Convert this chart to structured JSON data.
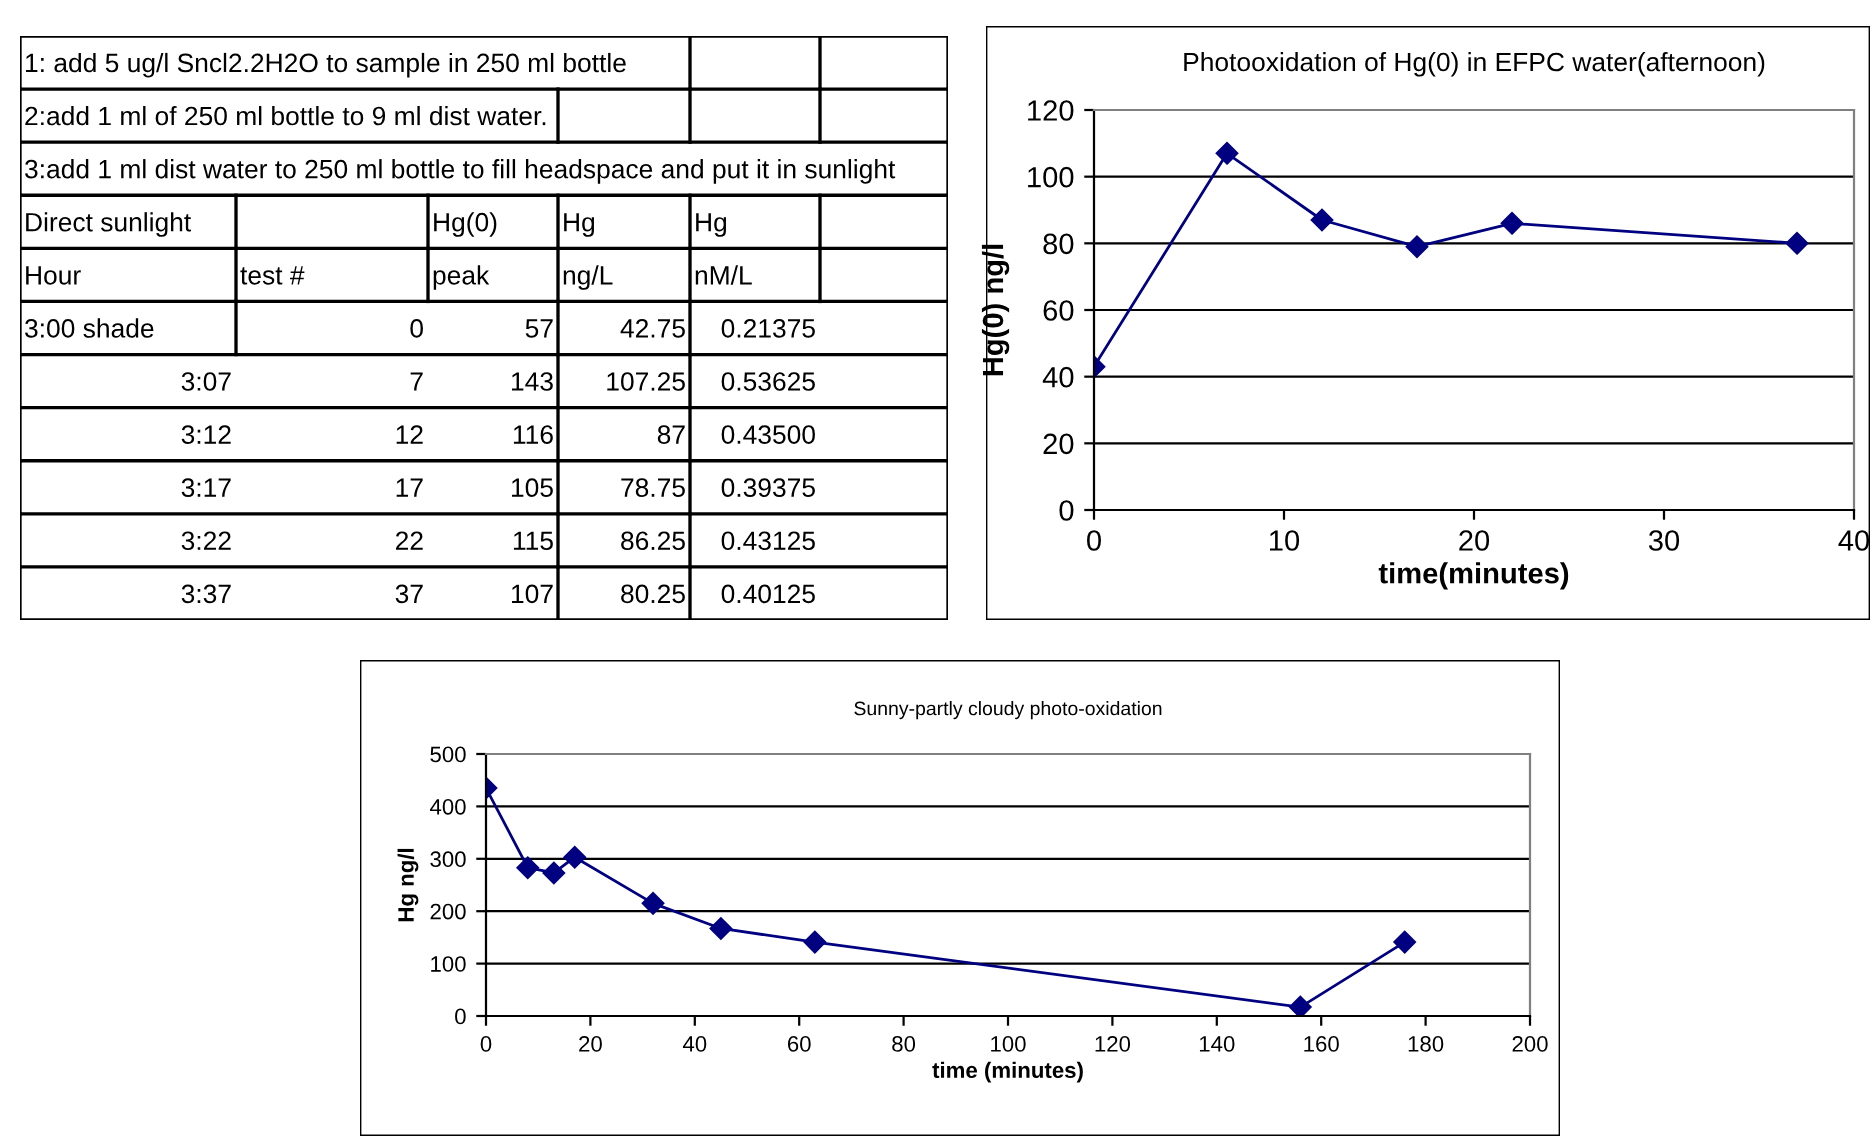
{
  "chart_data": [
    {
      "type": "other",
      "cells": [
        [
          "1: add 5 ug/l Sncl2.2H2O to sample in 250 ml bottle",
          null,
          null,
          null,
          null,
          null
        ],
        [
          "2:add 1 ml of 250 ml bottle to 9 ml dist water.",
          null,
          null,
          null,
          null,
          null
        ],
        [
          "3:add 1 ml dist water to 250 ml bottle to fill headspace and put it in sunlight",
          null,
          null,
          null,
          null,
          null
        ],
        [
          "Direct sunlight",
          null,
          "Hg(0)",
          "Hg",
          "Hg",
          null
        ],
        [
          "Hour",
          "test #",
          "peak",
          "ng/L",
          "nM/L",
          null
        ],
        [
          "3:00 shade",
          "0",
          "57",
          "42.75",
          "0.21375",
          null
        ],
        [
          "3:07",
          "7",
          "143",
          "107.25",
          "0.53625",
          null
        ],
        [
          "3:12",
          "12",
          "116",
          "87",
          "0.43500",
          null
        ],
        [
          "3:17",
          "17",
          "105",
          "78.75",
          "0.39375",
          null
        ],
        [
          "3:22",
          "22",
          "115",
          "86.25",
          "0.43125",
          null
        ],
        [
          "3:37",
          "37",
          "107",
          "80.25",
          "0.40125",
          null
        ]
      ]
    },
    {
      "type": "line",
      "title": "Photooxidation of Hg(0) in EFPC water(afternoon)",
      "xlabel": "time(minutes)",
      "ylabel": "Hg(0) ng/l",
      "x": [
        0,
        7,
        12,
        17,
        22,
        37
      ],
      "series": [
        {
          "color": "#000080",
          "values": [
            43,
            107,
            87,
            79,
            86,
            80
          ]
        }
      ],
      "xlim": [
        0,
        40
      ],
      "xticks": [
        0,
        10,
        20,
        30,
        40
      ],
      "ylim": [
        0,
        120
      ],
      "yticks": [
        0,
        20,
        40,
        60,
        80,
        100,
        120
      ],
      "grid": "y",
      "marker": "diamond",
      "line_style": "solid"
    },
    {
      "type": "line",
      "title": "Sunny-partly cloudy photo-oxidation",
      "xlabel": "time (minutes)",
      "ylabel": "Hg ng/l",
      "x": [
        0,
        8,
        13,
        17,
        32,
        45,
        63,
        156,
        176
      ],
      "series": [
        {
          "color": "#000080",
          "values": [
            435,
            283,
            273,
            303,
            215,
            167,
            141,
            17,
            141
          ]
        }
      ],
      "xlim": [
        0,
        200
      ],
      "xticks": [
        0,
        20,
        40,
        60,
        80,
        100,
        120,
        140,
        160,
        180,
        200
      ],
      "ylim": [
        0,
        500
      ],
      "yticks": [
        0,
        100,
        200,
        300,
        400,
        500
      ],
      "grid": "y",
      "marker": "diamond",
      "line_style": "solid"
    }
  ]
}
